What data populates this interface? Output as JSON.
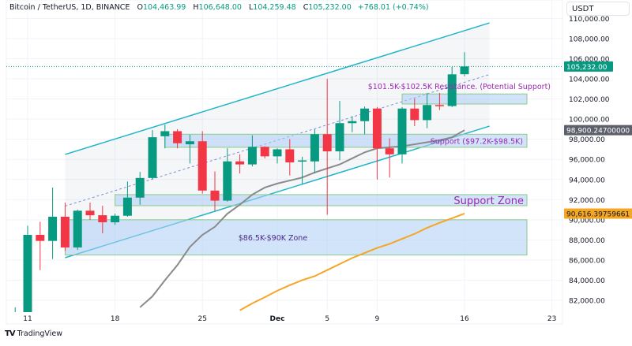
{
  "header": {
    "symbol": "Bitcoin / TetherUS, 1D, BINANCE",
    "open_label": "O",
    "open": "104,463.99",
    "high_label": "H",
    "high": "106,648.00",
    "low_label": "L",
    "low": "104,259.48",
    "close_label": "C",
    "close": "105,232.00",
    "change": "+768.01 (+0.74%)"
  },
  "currency_button": "USDT",
  "branding": "TradingView",
  "colors": {
    "up": "#089981",
    "down": "#f23645",
    "channel": "#22b5c9",
    "zone_fill": "#cfe2fb",
    "zone_border": "#8bc98b",
    "annotation": "#9c27b0",
    "ma_gray": "#8a8a8a",
    "ma_orange": "#f5a623",
    "last_price": "#089981"
  },
  "chart_data": {
    "type": "candlestick",
    "title": "",
    "xlabel": "",
    "ylabel": "",
    "ylim": [
      80500,
      110800
    ],
    "grid": true,
    "y_ticks": [
      "82,000.00",
      "84,000.00",
      "86,000.00",
      "88,000.00",
      "90,000.00",
      "92,000.00",
      "94,000.00",
      "96,000.00",
      "98,000.00",
      "100,000.00",
      "102,000.00",
      "104,000.00",
      "106,000.00",
      "108,000.00",
      "110,000.00"
    ],
    "x_ticks": [
      {
        "day": 0,
        "label": "11"
      },
      {
        "day": 7,
        "label": "18"
      },
      {
        "day": 14,
        "label": "25"
      },
      {
        "day": 20,
        "label": "Dec",
        "bold": true
      },
      {
        "day": 24,
        "label": "5"
      },
      {
        "day": 28,
        "label": "9"
      },
      {
        "day": 35,
        "label": "16"
      },
      {
        "day": 42,
        "label": "23"
      }
    ],
    "candles": [
      [
        "Nov 10",
        79000,
        81300,
        76000,
        80400
      ],
      [
        "Nov 11",
        80400,
        89400,
        80200,
        88500
      ],
      [
        "Nov 12",
        88500,
        89800,
        85000,
        87900
      ],
      [
        "Nov 13",
        87900,
        93200,
        86100,
        90300
      ],
      [
        "Nov 14",
        90300,
        91700,
        86900,
        87250
      ],
      [
        "Nov 15",
        87250,
        91000,
        87000,
        90900
      ],
      [
        "Nov 16",
        90900,
        91700,
        90000,
        90450
      ],
      [
        "Nov 17",
        90450,
        91400,
        88650,
        89750
      ],
      [
        "Nov 18",
        89750,
        90600,
        89500,
        90400
      ],
      [
        "Nov 19",
        90400,
        93800,
        90300,
        92200
      ],
      [
        "Nov 20",
        92200,
        94750,
        91500,
        94150
      ],
      [
        "Nov 21",
        94150,
        98900,
        94000,
        98200
      ],
      [
        "Nov 22",
        98300,
        99450,
        97100,
        98800
      ],
      [
        "Nov 23",
        98800,
        99000,
        97100,
        97600
      ],
      [
        "Nov 24",
        97500,
        98450,
        95600,
        97800
      ],
      [
        "Nov 25",
        97800,
        98800,
        92600,
        92900
      ],
      [
        "Nov 26",
        92900,
        94800,
        90900,
        91900
      ],
      [
        "Nov 27",
        91900,
        97100,
        91800,
        95800
      ],
      [
        "Nov 28",
        95800,
        96500,
        94600,
        95500
      ],
      [
        "Nov 29",
        95500,
        98400,
        95300,
        97250
      ],
      [
        "Nov 30",
        97250,
        97300,
        96100,
        96300
      ],
      [
        "Dec 1",
        96300,
        97100,
        95600,
        97000
      ],
      [
        "Dec 2",
        97000,
        98000,
        94400,
        95700
      ],
      [
        "Dec 3",
        95800,
        96250,
        93600,
        95900
      ],
      [
        "Dec 4",
        95800,
        99000,
        94600,
        98500
      ],
      [
        "Dec 5",
        98500,
        104000,
        90500,
        96800
      ],
      [
        "Dec 6",
        96800,
        101800,
        95900,
        99600
      ],
      [
        "Dec 7",
        99600,
        100300,
        98700,
        99800
      ],
      [
        "Dec 8",
        99800,
        101250,
        98500,
        101050
      ],
      [
        "Dec 9",
        101050,
        101200,
        94000,
        97100
      ],
      [
        "Dec 10",
        97100,
        98100,
        94200,
        96500
      ],
      [
        "Dec 11",
        96500,
        101200,
        95600,
        101050
      ],
      [
        "Dec 12",
        101050,
        102050,
        99300,
        99900
      ],
      [
        "Dec 13",
        99900,
        102600,
        99100,
        101400
      ],
      [
        "Dec 14",
        101400,
        102600,
        100900,
        101300
      ],
      [
        "Dec 15",
        101300,
        105200,
        101200,
        104450
      ],
      [
        "Dec 16",
        104463.99,
        106648.0,
        104259.48,
        105232.0
      ]
    ],
    "moving_averages": [
      {
        "color": "#8a8a8a",
        "start_day": 9,
        "values": [
          81300,
          82400,
          84000,
          85500,
          87300,
          88500,
          89300,
          90600,
          91500,
          92500,
          93200,
          93600,
          93900,
          94200,
          94700,
          95100,
          95500,
          96100,
          96700,
          97100,
          97200,
          97300,
          97500,
          97700,
          97900,
          98200,
          98900.247
        ],
        "label": "98,900.24700000"
      },
      {
        "color": "#f5a623",
        "start_day": 17,
        "values": [
          81000,
          81700,
          82300,
          82950,
          83500,
          84000,
          84400,
          85000,
          85600,
          86200,
          86700,
          87200,
          87600,
          88100,
          88600,
          89200,
          89700,
          90150,
          90616.398
        ],
        "label": "90,616.39759661"
      }
    ],
    "last_price_label": "105,232.00",
    "last_price": 105232,
    "channel": {
      "start_day": 3,
      "end_day": 37,
      "upper": [
        96490,
        109560
      ],
      "lower": [
        86230,
        99300
      ]
    },
    "zones": [
      {
        "from_day": 3,
        "to_day": 40,
        "low": 86500,
        "high": 90000,
        "text": "$86.5K-$90K Zone",
        "style": "plain"
      },
      {
        "from_day": 7,
        "to_day": 40,
        "low": 91400,
        "high": 92500,
        "text": "Support Zone",
        "style": "big"
      },
      {
        "from_day": 11,
        "to_day": 40,
        "low": 97200,
        "high": 98500,
        "text": "Support ($97.2K-$98.5K)",
        "style": "right"
      },
      {
        "from_day": 30,
        "to_day": 40,
        "low": 101500,
        "high": 102500,
        "text": "$101.5K-$102.5K Resistance. (Potential Support)",
        "style": "above"
      }
    ]
  }
}
